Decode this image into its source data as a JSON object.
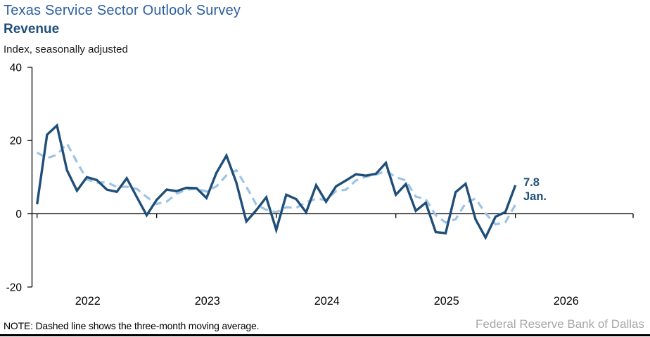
{
  "header": {
    "title": "Texas Service Sector Outlook Survey",
    "subtitle": "Revenue",
    "index_label": "Index, seasonally adjusted"
  },
  "chart_data": {
    "type": "line",
    "title": "Texas Service Sector Outlook Survey",
    "subtitle": "Revenue",
    "ylabel": "Index, seasonally adjusted",
    "ylim": [
      -20,
      40
    ],
    "y_ticks": [
      40,
      20,
      0,
      -20
    ],
    "grid": false,
    "legend": "none",
    "x_unit": "month",
    "x_start_label": "Jan 2022",
    "x_end_label": "Jan 2026",
    "year_labels": [
      "2022",
      "2023",
      "2024",
      "2025",
      "2026"
    ],
    "series": [
      {
        "name": "Revenue index",
        "style": "solid",
        "color": "#1f4e79",
        "values": [
          2.6,
          21.6,
          24.1,
          11.9,
          6.3,
          10.0,
          9.2,
          6.6,
          6.0,
          9.7,
          4.6,
          -0.4,
          3.8,
          6.6,
          6.2,
          7.1,
          7.0,
          4.3,
          11.2,
          15.9,
          8.5,
          -2.1,
          1.0,
          4.5,
          -4.4,
          5.2,
          4.0,
          0.4,
          7.8,
          3.3,
          7.5,
          9.1,
          10.8,
          10.4,
          10.9,
          13.9,
          5.2,
          8.1,
          0.8,
          3.0,
          -5.0,
          -5.3,
          5.9,
          8.2,
          -1.5,
          -6.5,
          -0.8,
          0.5,
          7.8
        ]
      },
      {
        "name": "Three-month moving average",
        "style": "dashed",
        "color": "#9dc3e6",
        "values": [
          16.7,
          15.2,
          16.1,
          19.2,
          14.1,
          9.4,
          8.5,
          8.6,
          7.3,
          7.4,
          6.8,
          4.6,
          2.7,
          3.3,
          5.5,
          6.6,
          6.8,
          6.1,
          7.5,
          10.5,
          11.9,
          7.4,
          2.5,
          1.1,
          0.4,
          1.8,
          1.6,
          3.2,
          4.1,
          3.8,
          6.2,
          6.6,
          9.1,
          10.1,
          10.7,
          11.7,
          10.0,
          9.1,
          4.7,
          4.0,
          -0.4,
          -2.4,
          -1.5,
          2.9,
          4.2,
          0.1,
          -2.9,
          -2.3,
          2.5
        ]
      }
    ],
    "annotation": {
      "value_label": "7.8",
      "month_label": "Jan."
    }
  },
  "footer": {
    "note": "NOTE: Dashed line shows the three-month moving average.",
    "source": "Federal Reserve Bank of Dallas"
  },
  "colors": {
    "title_blue": "#2b5da3",
    "subtitle_navy": "#1f4e79",
    "line_navy": "#1f4e79",
    "line_light_blue": "#9dc3e6",
    "source_gray": "#a7a7a7",
    "axis_black": "#000000"
  }
}
